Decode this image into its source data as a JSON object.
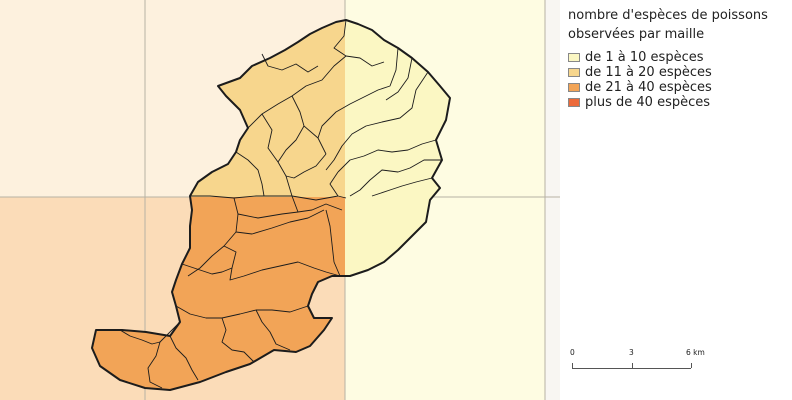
{
  "legend": {
    "title": "nombre d'espèces de poissons\nobservées par maille",
    "items": [
      {
        "label": "de 1 à 10 espèces",
        "color": "#fbf7c3"
      },
      {
        "label": "de 11 à 20 espèces",
        "color": "#f7d68d"
      },
      {
        "label": "de 21 à 40 espèces",
        "color": "#f2a457"
      },
      {
        "label": "plus de 40 espèces",
        "color": "#ec6a3a"
      }
    ]
  },
  "scale": {
    "labels": [
      "0",
      "3",
      "6 km"
    ]
  },
  "colors": {
    "grid_light_tan": "#fdf1de",
    "grid_light_yellow": "#fefce2",
    "grid_peach": "#fbdcb8",
    "grid_line": "#b7b2a4",
    "territory_north": "#f7d68d",
    "territory_east": "#fbf7c3",
    "territory_south": "#f2a457",
    "boundary": "#1c1c1c"
  }
}
